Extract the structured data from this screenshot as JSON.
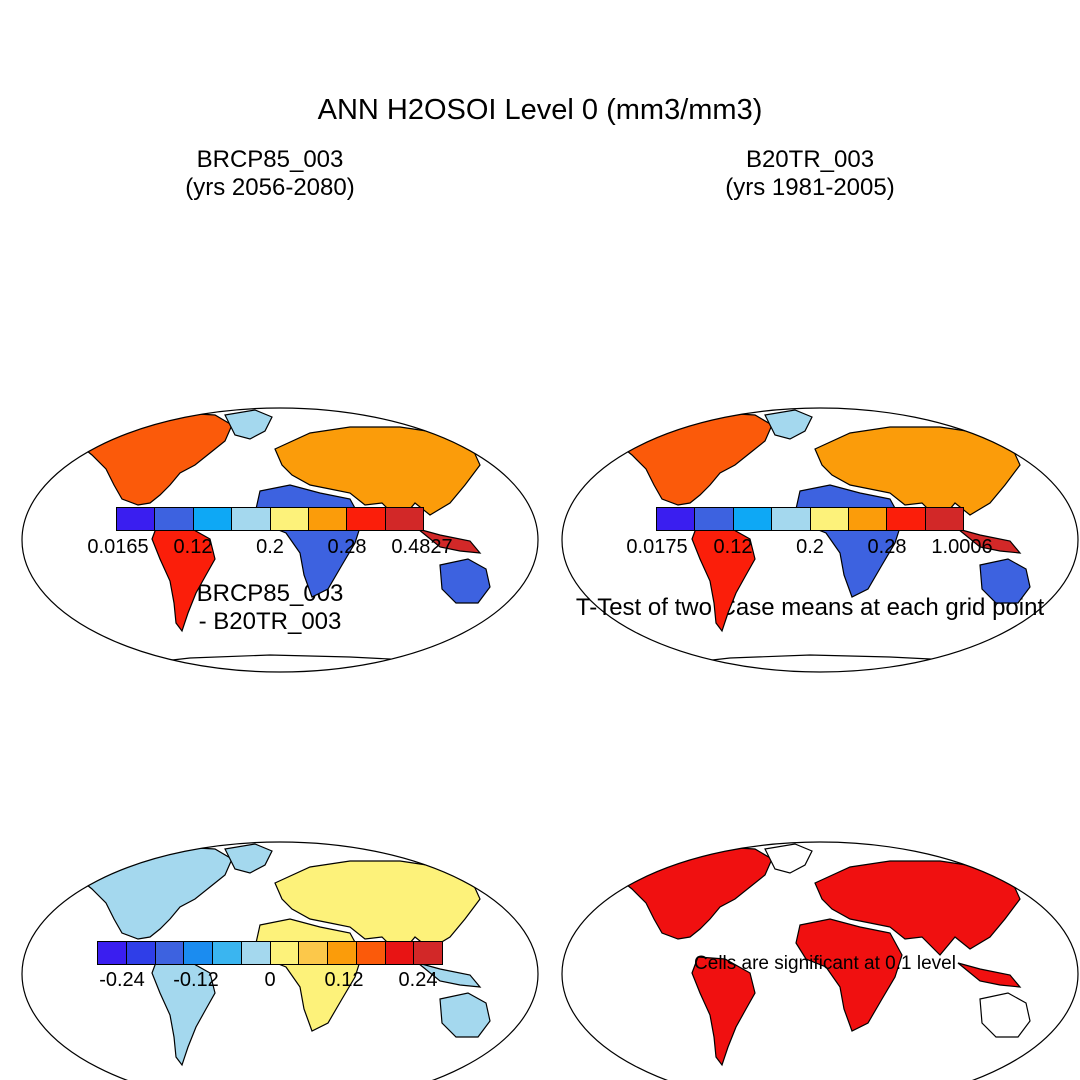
{
  "figure": {
    "title": "ANN H2OSOI Level 0 (mm3/mm3)"
  },
  "panels": {
    "p1": {
      "title_line1": "BRCP85_003",
      "title_line2": "(yrs 2056-2080)",
      "colorbar": {
        "colors": [
          "#3a1ef0",
          "#3d62e0",
          "#0ea8f5",
          "#a4d8ee",
          "#fdf27a",
          "#fb9c0a",
          "#fb1e0a",
          "#d22828"
        ],
        "ticks": [
          "0.0165",
          "0.12",
          "0.2",
          "0.28",
          "0.4827"
        ]
      }
    },
    "p2": {
      "title_line1": "B20TR_003",
      "title_line2": "(yrs 1981-2005)",
      "colorbar": {
        "colors": [
          "#3a1ef0",
          "#3d62e0",
          "#0ea8f5",
          "#a4d8ee",
          "#fdf27a",
          "#fb9c0a",
          "#fb1e0a",
          "#d22828"
        ],
        "ticks": [
          "0.0175",
          "0.12",
          "0.2",
          "0.28",
          "1.0006"
        ]
      }
    },
    "p3": {
      "title_line1": "BRCP85_003",
      "title_line2": "- B20TR_003",
      "colorbar": {
        "colors": [
          "#3a1ef0",
          "#2f3ee8",
          "#3d62e0",
          "#1b8cf0",
          "#3ab5f0",
          "#a4d8ee",
          "#fdf27a",
          "#fcc84a",
          "#fb9c0a",
          "#fb5a0a",
          "#e81414",
          "#d22828"
        ],
        "ticks": [
          "-0.24",
          "-0.12",
          "0",
          "0.12",
          "0.24"
        ]
      }
    },
    "p4": {
      "title": "T-Test of two Case means at each grid point",
      "note": "Cells are significant at 0.1 level"
    }
  }
}
